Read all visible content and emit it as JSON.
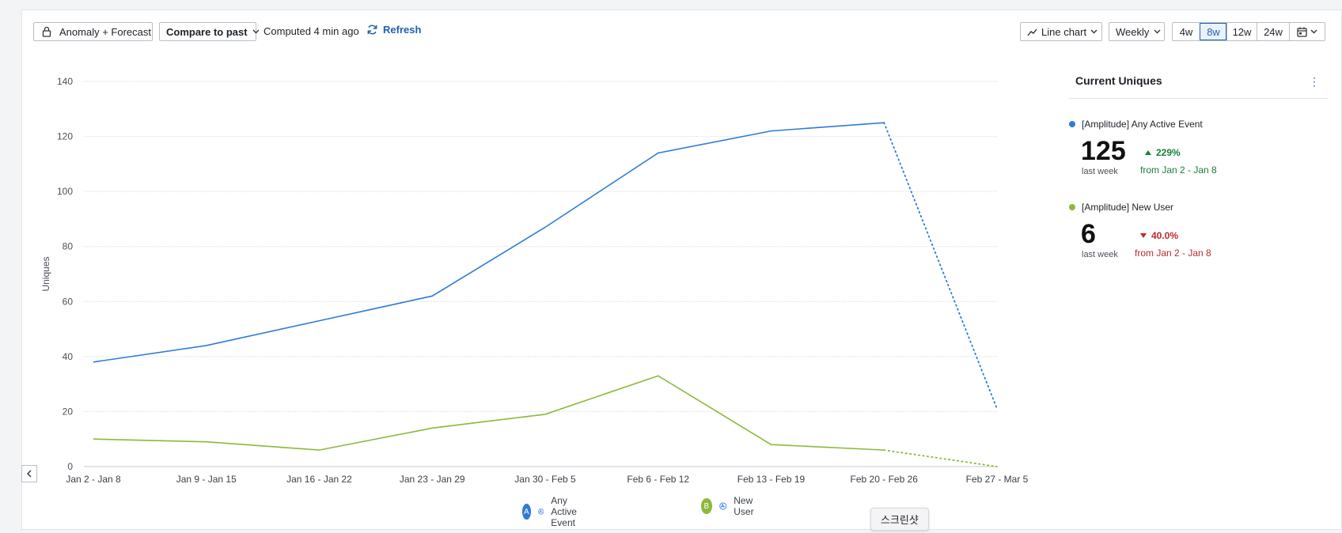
{
  "toolbar": {
    "anomaly_label": "Anomaly + Forecast",
    "compare_label": "Compare to past",
    "computed_text": "Computed 4 min ago",
    "refresh_label": "Refresh",
    "chart_type_label": "Line chart",
    "interval_label": "Weekly",
    "ranges": [
      "4w",
      "8w",
      "12w",
      "24w"
    ],
    "active_range": "8w"
  },
  "sidebar": {
    "title": "Current Uniques",
    "metrics": [
      {
        "name": "[Amplitude] Any Active Event",
        "value": "125",
        "period": "last week",
        "change": "229%",
        "direction": "up",
        "from": "from Jan 2 - Jan 8",
        "color": "#2f7bd6"
      },
      {
        "name": "[Amplitude] New User",
        "value": "6",
        "period": "last week",
        "change": "40.0%",
        "direction": "down",
        "from": "from Jan 2 - Jan 8",
        "color": "#8db83b"
      }
    ]
  },
  "legend": [
    {
      "badge": "A",
      "label": "Any Active Event",
      "color": "#2f7bd6"
    },
    {
      "badge": "B",
      "label": "New User",
      "color": "#8db83b"
    }
  ],
  "tooltip": "스크린샷",
  "chart_data": {
    "type": "line",
    "ylabel": "Uniques",
    "xlabel": "",
    "ylim": [
      0,
      140
    ],
    "yticks": [
      0,
      20,
      40,
      60,
      80,
      100,
      120,
      140
    ],
    "categories": [
      "Jan 2 - Jan 8",
      "Jan 9 - Jan 15",
      "Jan 16 - Jan 22",
      "Jan 23 - Jan 29",
      "Jan 30 - Feb 5",
      "Feb 6 - Feb 12",
      "Feb 13 - Feb 19",
      "Feb 20 - Feb 26",
      "Feb 27 - Mar 5"
    ],
    "grid": true,
    "series": [
      {
        "name": "Any Active Event",
        "color": "#2f7bd6",
        "values": [
          38,
          44,
          53,
          62,
          87,
          114,
          122,
          125,
          21
        ],
        "incomplete_last": true
      },
      {
        "name": "New User",
        "color": "#8db83b",
        "values": [
          10,
          9,
          6,
          14,
          19,
          33,
          8,
          6,
          0
        ],
        "incomplete_last": true
      }
    ]
  }
}
